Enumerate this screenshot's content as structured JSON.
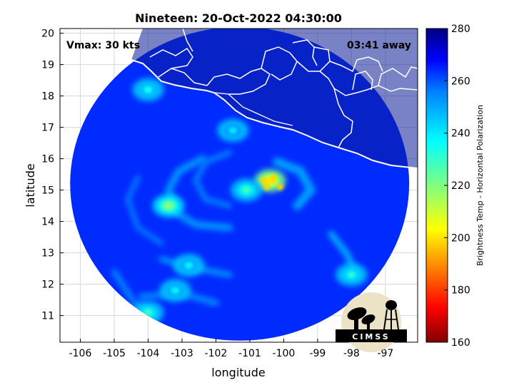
{
  "chart_data": {
    "type": "heatmap",
    "title": "Nineteen: 20-Oct-2022 04:30:00",
    "xlabel": "longitude",
    "ylabel": "latitude",
    "xlim": [
      -106.6,
      -96.05
    ],
    "ylim": [
      10.15,
      20.15
    ],
    "xticks": [
      -106,
      -105,
      -104,
      -103,
      -102,
      -101,
      -100,
      -99,
      -98,
      -97
    ],
    "yticks": [
      11,
      12,
      13,
      14,
      15,
      16,
      17,
      18,
      19,
      20
    ],
    "grid": true,
    "annotations": {
      "vmax": "Vmax: 30 kts",
      "offset": "03:41 away"
    },
    "colorbar": {
      "label": "Brightness Temp - Horizontal Polarization",
      "range": [
        160,
        280
      ],
      "ticks": [
        160,
        180,
        200,
        220,
        240,
        260,
        280
      ]
    },
    "swath": {
      "center_lon": -101.3,
      "center_lat": 15.2,
      "radius_deg": 5.0,
      "background_value": 264
    },
    "cold_features": [
      {
        "lon": -100.4,
        "lat": 15.3,
        "min_value": 200
      },
      {
        "lon": -103.4,
        "lat": 14.5,
        "min_value": 218
      },
      {
        "lon": -101.1,
        "lat": 15.0,
        "min_value": 228
      },
      {
        "lon": -102.8,
        "lat": 12.6,
        "min_value": 238
      },
      {
        "lon": -103.2,
        "lat": 11.8,
        "min_value": 238
      },
      {
        "lon": -104.0,
        "lat": 11.1,
        "min_value": 230
      },
      {
        "lon": -98.0,
        "lat": 12.3,
        "min_value": 232
      },
      {
        "lon": -104.0,
        "lat": 18.2,
        "min_value": 235
      },
      {
        "lon": -101.5,
        "lat": 16.9,
        "min_value": 240
      }
    ]
  },
  "logo": {
    "text": "CIMSS",
    "icon": "satellite-dish-water-tower-icon",
    "colors": {
      "bg": "#ece3c6",
      "fg": "#000000"
    }
  },
  "colors": {
    "land": "#0c1c98",
    "coast": "#ffffff"
  }
}
